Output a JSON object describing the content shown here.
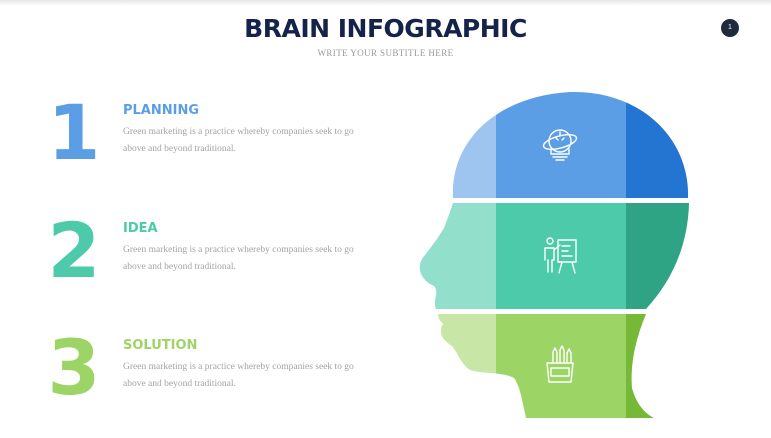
{
  "header": {
    "title": "BRAIN INFOGRAPHIC",
    "subtitle": "WRITE YOUR SUBTITLE HERE",
    "page_number": "1"
  },
  "steps": [
    {
      "number": "1",
      "title": "PLANNING",
      "description": "Green marketing is a practice whereby companies seek to go above and beyond traditional.",
      "color": "#5b9ee6",
      "icon": "lightbulb-icon"
    },
    {
      "number": "2",
      "title": "IDEA",
      "description": "Green marketing is a practice whereby companies seek to go above and beyond traditional.",
      "color": "#4ccaa9",
      "icon": "presentation-icon"
    },
    {
      "number": "3",
      "title": "SOLUTION",
      "description": "Green marketing is a practice whereby companies seek to go above and beyond traditional.",
      "color": "#9dd466",
      "icon": "pencil-cup-icon"
    }
  ],
  "palette": {
    "blue_light": "#9ec4f0",
    "blue_mid": "#5b9ee6",
    "blue_dark": "#2474d2",
    "teal_light": "#92e0cc",
    "teal_mid": "#4ccaa9",
    "teal_dark": "#2ea484",
    "green_light": "#c8e6a6",
    "green_mid": "#9dd466",
    "green_dark": "#76b936",
    "title_color": "#15224a"
  }
}
